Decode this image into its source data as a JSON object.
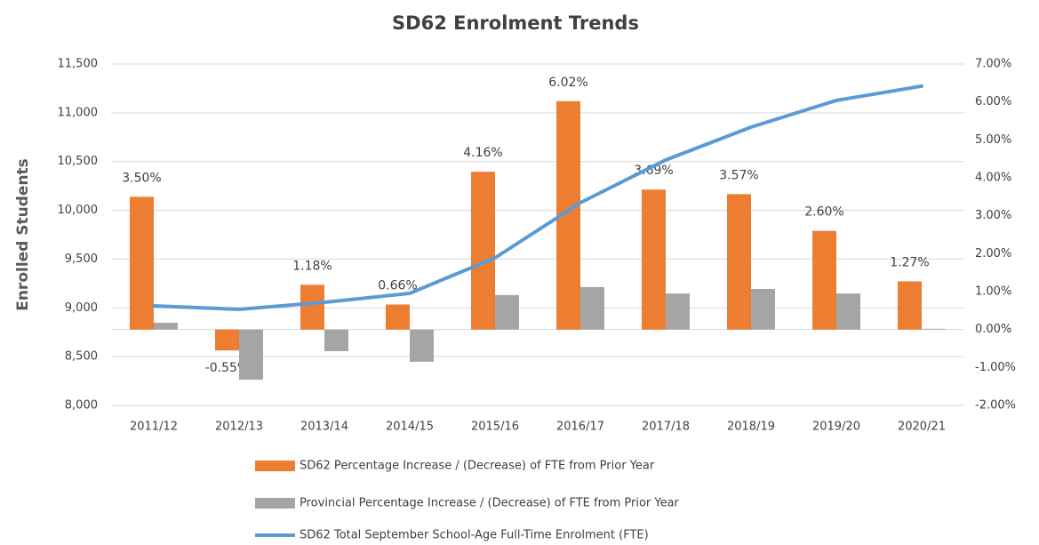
{
  "chart_data": {
    "type": "bar",
    "title": "SD62 Enrolment Trends",
    "y_label": "Enrolled Students",
    "categories": [
      "2011/12",
      "2012/13",
      "2013/14",
      "2014/15",
      "2015/16",
      "2016/17",
      "2017/18",
      "2018/19",
      "2019/20",
      "2020/21"
    ],
    "series": [
      {
        "name": "SD62 Percentage Increase / (Decrease) of FTE from Prior Year",
        "color": "#ed7d31",
        "axis": "y2",
        "values": [
          3.5,
          -0.55,
          1.18,
          0.66,
          4.16,
          6.02,
          3.69,
          3.57,
          2.6,
          1.27
        ],
        "value_labels": [
          "3.50%",
          "-0.55%",
          "1.18%",
          "0.66%",
          "4.16%",
          "6.02%",
          "3.69%",
          "3.57%",
          "2.60%",
          "1.27%"
        ]
      },
      {
        "name": "Provincial Percentage Increase / (Decrease) of FTE from Prior Year",
        "color": "#a5a5a5",
        "axis": "y2",
        "values": [
          0.18,
          -1.32,
          -0.57,
          -0.85,
          0.91,
          1.12,
          0.95,
          1.07,
          0.95,
          0.02
        ]
      },
      {
        "name": "SD62 Total September School-Age Full-Time Enrolment (FTE)",
        "color": "#5b9bd5",
        "type": "line",
        "values": [
          9021,
          8985,
          9057,
          9149,
          9513,
          10078,
          10516,
          10853,
          11127,
          11273
        ]
      }
    ],
    "ylim": [
      8000,
      11500
    ],
    "yticks": [
      {
        "value": 8000,
        "label": "8,000"
      },
      {
        "value": 8500,
        "label": "8,500"
      },
      {
        "value": 9000,
        "label": "9,000"
      },
      {
        "value": 9500,
        "label": "9,500"
      },
      {
        "value": 10000,
        "label": "10,000"
      },
      {
        "value": 10500,
        "label": "10,500"
      },
      {
        "value": 11000,
        "label": "11,000"
      },
      {
        "value": 11500,
        "label": "11,500"
      }
    ],
    "y2lim": [
      -2,
      7
    ],
    "y2ticks": [
      {
        "value": -2,
        "label": "-2.00%"
      },
      {
        "value": -1,
        "label": "-1.00%"
      },
      {
        "value": 0,
        "label": "0.00%"
      },
      {
        "value": 1,
        "label": "1.00%"
      },
      {
        "value": 2,
        "label": "2.00%"
      },
      {
        "value": 3,
        "label": "3.00%"
      },
      {
        "value": 4,
        "label": "4.00%"
      },
      {
        "value": 5,
        "label": "5.00%"
      },
      {
        "value": 6,
        "label": "6.00%"
      },
      {
        "value": 7,
        "label": "7.00%"
      }
    ],
    "grid": true
  }
}
